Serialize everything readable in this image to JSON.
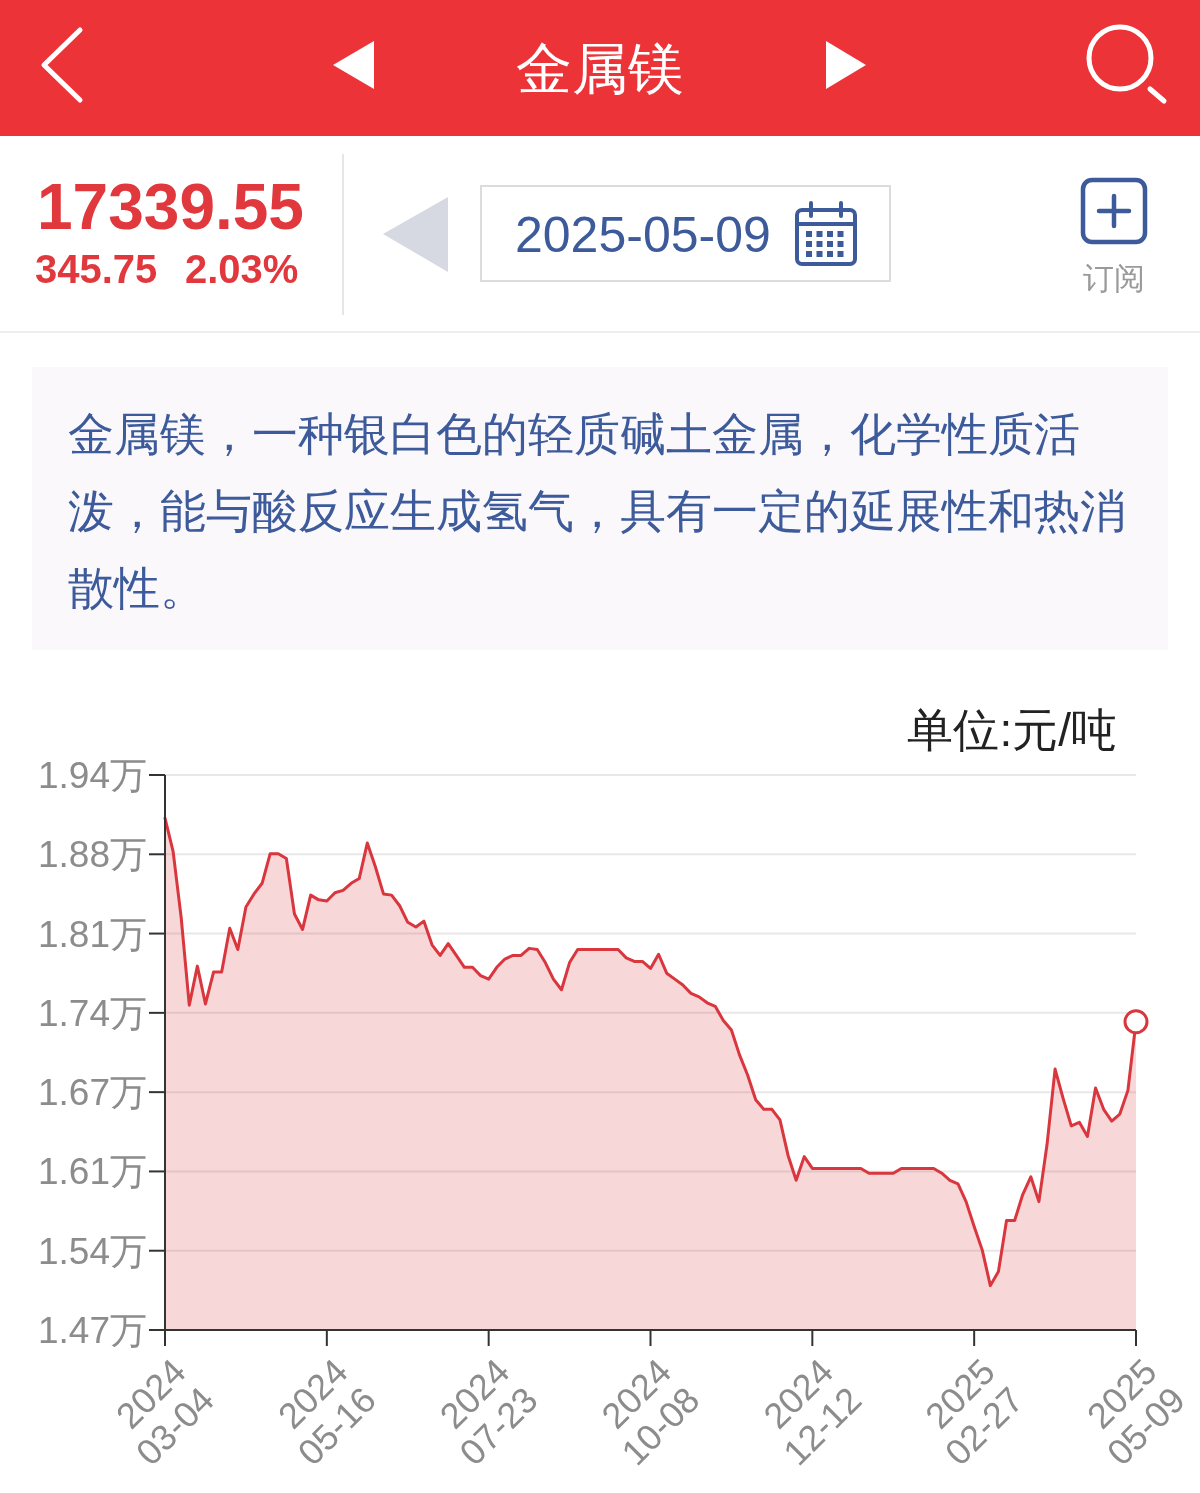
{
  "chart_data": {
    "type": "area",
    "title": "金属镁",
    "subtitle": "金属镁，一种银白色的轻质碱土金属，化学性质活泼，能与酸反应生成氢气，具有一定的延展性和热消散性。",
    "ylabel": "单位:元/吨",
    "annotations": [
      "17339.55",
      "345.75",
      "2.03%",
      "2025-05-09",
      "订阅"
    ],
    "categories": [
      "2024\n03-04",
      null,
      null,
      null,
      null,
      null,
      null,
      null,
      null,
      null,
      null,
      null,
      null,
      null,
      null,
      null,
      null,
      null,
      null,
      null,
      "2024\n05-16",
      null,
      null,
      null,
      null,
      null,
      null,
      null,
      null,
      null,
      null,
      null,
      null,
      null,
      null,
      null,
      null,
      null,
      null,
      null,
      "2024\n07-23",
      null,
      null,
      null,
      null,
      null,
      null,
      null,
      null,
      null,
      null,
      null,
      null,
      null,
      null,
      null,
      null,
      null,
      null,
      null,
      "2024\n10-08",
      null,
      null,
      null,
      null,
      null,
      null,
      null,
      null,
      null,
      null,
      null,
      null,
      null,
      null,
      null,
      null,
      null,
      null,
      null,
      "2024\n12-12",
      null,
      null,
      null,
      null,
      null,
      null,
      null,
      null,
      null,
      null,
      null,
      null,
      null,
      null,
      null,
      null,
      null,
      null,
      null,
      "2025\n02-27",
      null,
      null,
      null,
      null,
      null,
      null,
      null,
      null,
      null,
      null,
      null,
      null,
      null,
      null,
      null,
      null,
      null,
      null,
      null,
      "2025\n05-09"
    ],
    "series": [
      {
        "color": "#d9363e",
        "values": [
          1.906,
          1.878,
          1.822,
          1.748,
          1.781,
          1.749,
          1.776,
          1.776,
          1.813,
          1.795,
          1.831,
          1.842,
          1.851,
          1.876,
          1.876,
          1.872,
          1.825,
          1.812,
          1.841,
          1.837,
          1.836,
          1.843,
          1.845,
          1.851,
          1.855,
          1.885,
          1.865,
          1.842,
          1.841,
          1.832,
          1.818,
          1.814,
          1.819,
          1.799,
          1.79,
          1.8,
          1.79,
          1.78,
          1.78,
          1.773,
          1.77,
          1.78,
          1.787,
          1.79,
          1.79,
          1.796,
          1.795,
          1.784,
          1.77,
          1.761,
          1.784,
          1.795,
          1.795,
          1.795,
          1.795,
          1.795,
          1.795,
          1.788,
          1.785,
          1.785,
          1.779,
          1.791,
          1.775,
          1.77,
          1.765,
          1.758,
          1.755,
          1.75,
          1.747,
          1.735,
          1.727,
          1.706,
          1.689,
          1.668,
          1.66,
          1.66,
          1.651,
          1.621,
          1.6,
          1.62,
          1.61,
          1.61,
          1.61,
          1.61,
          1.61,
          1.61,
          1.61,
          1.606,
          1.606,
          1.606,
          1.606,
          1.61,
          1.61,
          1.61,
          1.61,
          1.61,
          1.606,
          1.6,
          1.597,
          1.582,
          1.561,
          1.541,
          1.511,
          1.523,
          1.566,
          1.566,
          1.588,
          1.603,
          1.582,
          1.63,
          1.694,
          1.669,
          1.646,
          1.649,
          1.637,
          1.678,
          1.66,
          1.65,
          1.656,
          1.676,
          1.734
        ]
      },
      {
        "type": "scatter",
        "x": [
          "2025\n05-09"
        ],
        "values": [
          1.734
        ],
        "color": "#d9363e",
        "marker": "circle"
      }
    ],
    "ylim": [
      1.4735,
      1.9425
    ],
    "yticks": [
      {
        "value": 1.4735,
        "label": "1.47万"
      },
      {
        "value": 1.5405,
        "label": "1.54万"
      },
      {
        "value": 1.6075,
        "label": "1.61万"
      },
      {
        "value": 1.6745,
        "label": "1.67万"
      },
      {
        "value": 1.7415,
        "label": "1.74万"
      },
      {
        "value": 1.8085,
        "label": "1.81万"
      },
      {
        "value": 1.8755,
        "label": "1.88万"
      },
      {
        "value": 1.9425,
        "label": "1.94万"
      }
    ],
    "grid": "y"
  }
}
